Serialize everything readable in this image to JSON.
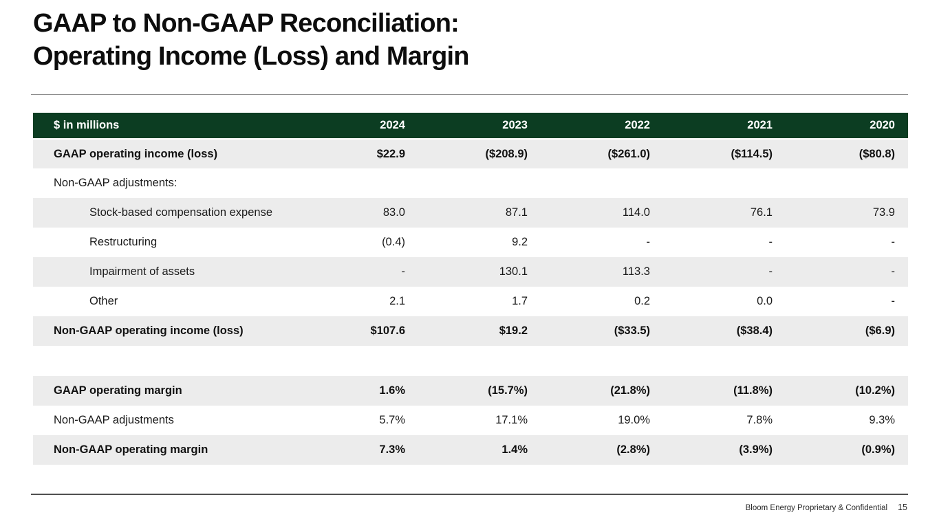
{
  "slide": {
    "title_line1": "GAAP to Non-GAAP Reconciliation:",
    "title_line2": "Operating Income (Loss) and Margin",
    "footer": {
      "confidential": "Bloom Energy Proprietary & Confidential",
      "page_number": "15"
    }
  },
  "colors": {
    "header_green": "#0c3d22",
    "row_gray": "#ececec",
    "title_black": "#0d0d0d"
  },
  "chart_data": {
    "type": "table",
    "title": "GAAP to Non-GAAP Reconciliation: Operating Income (Loss) and Margin",
    "units_label": "$ in millions",
    "columns": [
      "2024",
      "2023",
      "2022",
      "2021",
      "2020"
    ],
    "rows": [
      {
        "label": "GAAP operating income (loss)",
        "values": [
          "$22.9",
          "($208.9)",
          "($261.0)",
          "($114.5)",
          "($80.8)"
        ]
      },
      {
        "label": "Non-GAAP adjustments:",
        "values": [
          "",
          "",
          "",
          "",
          ""
        ]
      },
      {
        "label": "Stock-based compensation expense",
        "values": [
          "83.0",
          "87.1",
          "114.0",
          "76.1",
          "73.9"
        ]
      },
      {
        "label": "Restructuring",
        "values": [
          "(0.4)",
          "9.2",
          "-",
          "-",
          "-"
        ]
      },
      {
        "label": "Impairment of assets",
        "values": [
          "-",
          "130.1",
          "113.3",
          "-",
          "-"
        ]
      },
      {
        "label": "Other",
        "values": [
          "2.1",
          "1.7",
          "0.2",
          "0.0",
          "-"
        ]
      },
      {
        "label": "Non-GAAP operating income (loss)",
        "values": [
          "$107.6",
          "$19.2",
          "($33.5)",
          "($38.4)",
          "($6.9)"
        ]
      },
      {
        "label": "GAAP operating margin",
        "values": [
          "1.6%",
          "(15.7%)",
          "(21.8%)",
          "(11.8%)",
          "(10.2%)"
        ]
      },
      {
        "label": "Non-GAAP adjustments",
        "values": [
          "5.7%",
          "17.1%",
          "19.0%",
          "7.8%",
          "9.3%"
        ]
      },
      {
        "label": "Non-GAAP operating margin",
        "values": [
          "7.3%",
          "1.4%",
          "(2.8%)",
          "(3.9%)",
          "(0.9%)"
        ]
      }
    ]
  },
  "table": {
    "header": {
      "label": "$ in millions",
      "years": [
        "2024",
        "2023",
        "2022",
        "2021",
        "2020"
      ]
    },
    "rows": [
      {
        "label": "GAAP operating income (loss)",
        "values": [
          "$22.9",
          "($208.9)",
          "($261.0)",
          "($114.5)",
          "($80.8)"
        ]
      },
      {
        "label": "Non-GAAP adjustments:",
        "values": [
          "",
          "",
          "",
          "",
          ""
        ]
      },
      {
        "label": "Stock-based compensation expense",
        "values": [
          "83.0",
          "87.1",
          "114.0",
          "76.1",
          "73.9"
        ]
      },
      {
        "label": "Restructuring",
        "values": [
          "(0.4)",
          "9.2",
          "-",
          "-",
          "-"
        ]
      },
      {
        "label": "Impairment of assets",
        "values": [
          "-",
          "130.1",
          "113.3",
          "-",
          "-"
        ]
      },
      {
        "label": "Other",
        "values": [
          "2.1",
          "1.7",
          "0.2",
          "0.0",
          "-"
        ]
      },
      {
        "label": "Non-GAAP operating income (loss)",
        "values": [
          "$107.6",
          "$19.2",
          "($33.5)",
          "($38.4)",
          "($6.9)"
        ]
      }
    ],
    "margin_rows": [
      {
        "label": "GAAP operating margin",
        "values": [
          "1.6%",
          "(15.7%)",
          "(21.8%)",
          "(11.8%)",
          "(10.2%)"
        ]
      },
      {
        "label": "Non-GAAP adjustments",
        "values": [
          "5.7%",
          "17.1%",
          "19.0%",
          "7.8%",
          "9.3%"
        ]
      },
      {
        "label": "Non-GAAP operating margin",
        "values": [
          "7.3%",
          "1.4%",
          "(2.8%)",
          "(3.9%)",
          "(0.9%)"
        ]
      }
    ]
  }
}
